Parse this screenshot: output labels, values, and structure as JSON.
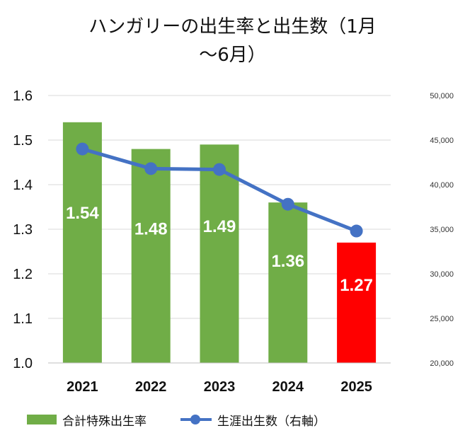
{
  "chart_data": {
    "type": "bar+line",
    "title_lines": [
      "ハンガリーの出生率と出生数（1月",
      "〜6月）"
    ],
    "categories": [
      "2021",
      "2022",
      "2023",
      "2024",
      "2025"
    ],
    "series": [
      {
        "name": "合計特殊出生率",
        "type": "bar",
        "axis": "left",
        "values": [
          1.54,
          1.48,
          1.49,
          1.36,
          1.27
        ],
        "data_labels": [
          "1.54",
          "1.48",
          "1.49",
          "1.36",
          "1.27"
        ],
        "colors": [
          "#70ad47",
          "#70ad47",
          "#70ad47",
          "#70ad47",
          "#ff0000"
        ]
      },
      {
        "name": "生涯出生数（右軸）",
        "type": "line",
        "axis": "right",
        "values": [
          44000,
          41800,
          41700,
          37800,
          34800
        ],
        "color": "#4472c4"
      }
    ],
    "y_left": {
      "min": 1.0,
      "max": 1.6,
      "ticks": [
        "1.6",
        "1.5",
        "1.4",
        "1.3",
        "1.2",
        "1.1",
        "1.0"
      ]
    },
    "y_right": {
      "min": 20000,
      "max": 50000,
      "ticks": [
        "50,000",
        "45,000",
        "40,000",
        "35,000",
        "30,000",
        "25,000",
        "20,000"
      ]
    },
    "grid": true,
    "legend_position": "bottom"
  },
  "legend": {
    "bar_label": "合計特殊出生率",
    "line_label": "生涯出生数（右軸）"
  }
}
